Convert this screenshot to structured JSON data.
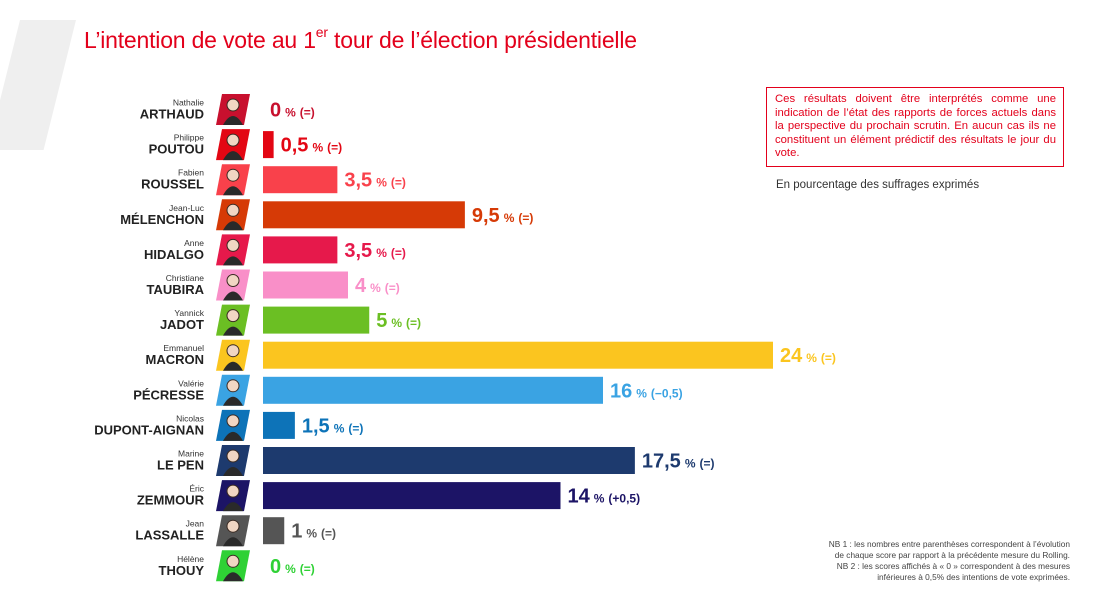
{
  "title": {
    "main": "L’intention de vote au 1",
    "sup": "er",
    "rest": " tour de l’élection présidentielle"
  },
  "note": "Ces résultats doivent être interprétés comme une indication de l’état des rapports de forces actuels dans la perspective du prochain scrutin. En aucun cas ils ne constituent un élément prédictif des résultats le jour du vote.",
  "unit_label": "En pourcentage des suffrages exprimés",
  "footnotes": [
    "NB 1 : les nombres entre parenthèses correspondent à l’évolution",
    "de chaque score par rapport à la précédente mesure du Rolling.",
    "NB 2 : les scores affichés à « 0 » correspondent à des mesures",
    "inférieures à 0,5% des intentions de vote exprimées."
  ],
  "chart_data": {
    "type": "bar",
    "orientation": "horizontal",
    "unit": "%",
    "xlim": [
      0,
      24
    ],
    "candidates": [
      {
        "first": "Nathalie",
        "last": "ARTHAUD",
        "value": 0,
        "label": "0",
        "change": "(=)",
        "color": "#c8102e",
        "photo_bg": "#c8102e"
      },
      {
        "first": "Philippe",
        "last": "POUTOU",
        "value": 0.5,
        "label": "0,5",
        "change": "(=)",
        "color": "#e30613",
        "photo_bg": "#e30613"
      },
      {
        "first": "Fabien",
        "last": "ROUSSEL",
        "value": 3.5,
        "label": "3,5",
        "change": "(=)",
        "color": "#f9414b",
        "photo_bg": "#f9414b"
      },
      {
        "first": "Jean-Luc",
        "last": "MÉLENCHON",
        "value": 9.5,
        "label": "9,5",
        "change": "(=)",
        "color": "#d63a06",
        "photo_bg": "#d63a06"
      },
      {
        "first": "Anne",
        "last": "HIDALGO",
        "value": 3.5,
        "label": "3,5",
        "change": "(=)",
        "color": "#e6194b",
        "photo_bg": "#e6194b"
      },
      {
        "first": "Christiane",
        "last": "TAUBIRA",
        "value": 4,
        "label": "4",
        "change": "(=)",
        "color": "#f98fc8",
        "photo_bg": "#f98fc8"
      },
      {
        "first": "Yannick",
        "last": "JADOT",
        "value": 5,
        "label": "5",
        "change": "(=)",
        "color": "#6bbf23",
        "photo_bg": "#6bbf23"
      },
      {
        "first": "Emmanuel",
        "last": "MACRON",
        "value": 24,
        "label": "24",
        "change": "(=)",
        "color": "#fbc51f",
        "photo_bg": "#fbc51f"
      },
      {
        "first": "Valérie",
        "last": "PÉCRESSE",
        "value": 16,
        "label": "16",
        "change": "(−0,5)",
        "color": "#3aa3e3",
        "photo_bg": "#3aa3e3"
      },
      {
        "first": "Nicolas",
        "last": "DUPONT-AIGNAN",
        "value": 1.5,
        "label": "1,5",
        "change": "(=)",
        "color": "#0d73b8",
        "photo_bg": "#0d73b8"
      },
      {
        "first": "Marine",
        "last": "LE PEN",
        "value": 17.5,
        "label": "17,5",
        "change": "(=)",
        "color": "#1d3a6e",
        "photo_bg": "#1d3a6e"
      },
      {
        "first": "Éric",
        "last": "ZEMMOUR",
        "value": 14,
        "label": "14",
        "change": "(+0,5)",
        "color": "#1c1466",
        "photo_bg": "#1c1466"
      },
      {
        "first": "Jean",
        "last": "LASSALLE",
        "value": 1,
        "label": "1",
        "change": "(=)",
        "color": "#555555",
        "photo_bg": "#555555"
      },
      {
        "first": "Hélène",
        "last": "THOUY",
        "value": 0,
        "label": "0",
        "change": "(=)",
        "color": "#2fd135",
        "photo_bg": "#2fd135"
      }
    ]
  }
}
